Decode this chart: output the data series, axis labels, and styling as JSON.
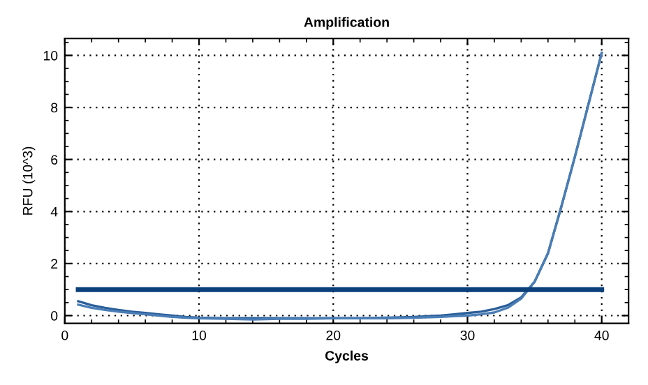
{
  "chart_data": {
    "type": "line",
    "title": "Amplification",
    "xlabel": "Cycles",
    "ylabel": "RFU (10^3)",
    "xlim": [
      0,
      42
    ],
    "xticks": [
      0,
      10,
      20,
      30,
      40
    ],
    "ylim": [
      -0.3,
      10.65
    ],
    "yticks": [
      0,
      2,
      4,
      6,
      8,
      10
    ],
    "grid": true,
    "marker": "none",
    "line_style": "solid",
    "series": [
      {
        "color": "#2b5f99",
        "x": [
          1,
          2,
          3,
          4,
          5,
          6,
          7,
          8,
          9,
          10,
          12,
          14,
          16,
          18,
          20,
          22,
          24,
          26,
          28,
          29,
          30,
          31,
          32,
          33,
          34,
          35,
          36,
          37,
          38,
          39,
          40
        ],
        "values": [
          0.55,
          0.4,
          0.3,
          0.22,
          0.15,
          0.1,
          0.05,
          0.0,
          -0.05,
          -0.08,
          -0.1,
          -0.1,
          -0.1,
          -0.1,
          -0.1,
          -0.1,
          -0.08,
          -0.05,
          0.0,
          0.05,
          0.1,
          0.15,
          0.25,
          0.4,
          0.7,
          1.3,
          2.4,
          4.2,
          6.1,
          8.1,
          10.1
        ]
      },
      {
        "color": "#4a7db5",
        "x": [
          1,
          2,
          3,
          4,
          5,
          6,
          7,
          8,
          9,
          10,
          12,
          14,
          16,
          18,
          20,
          22,
          24,
          26,
          28,
          29,
          30,
          31,
          32,
          33,
          34,
          35,
          36,
          37,
          38,
          39,
          40
        ],
        "values": [
          0.42,
          0.3,
          0.22,
          0.15,
          0.1,
          0.05,
          0.0,
          -0.05,
          -0.08,
          -0.1,
          -0.12,
          -0.15,
          -0.12,
          -0.12,
          -0.1,
          -0.1,
          -0.1,
          -0.08,
          -0.05,
          -0.02,
          0.0,
          0.05,
          0.12,
          0.3,
          0.65,
          1.3,
          2.4,
          4.2,
          6.1,
          8.1,
          10.1
        ]
      },
      {
        "color": "#0b3f7a",
        "x": [
          1,
          40
        ],
        "values": [
          1,
          1
        ]
      }
    ]
  }
}
